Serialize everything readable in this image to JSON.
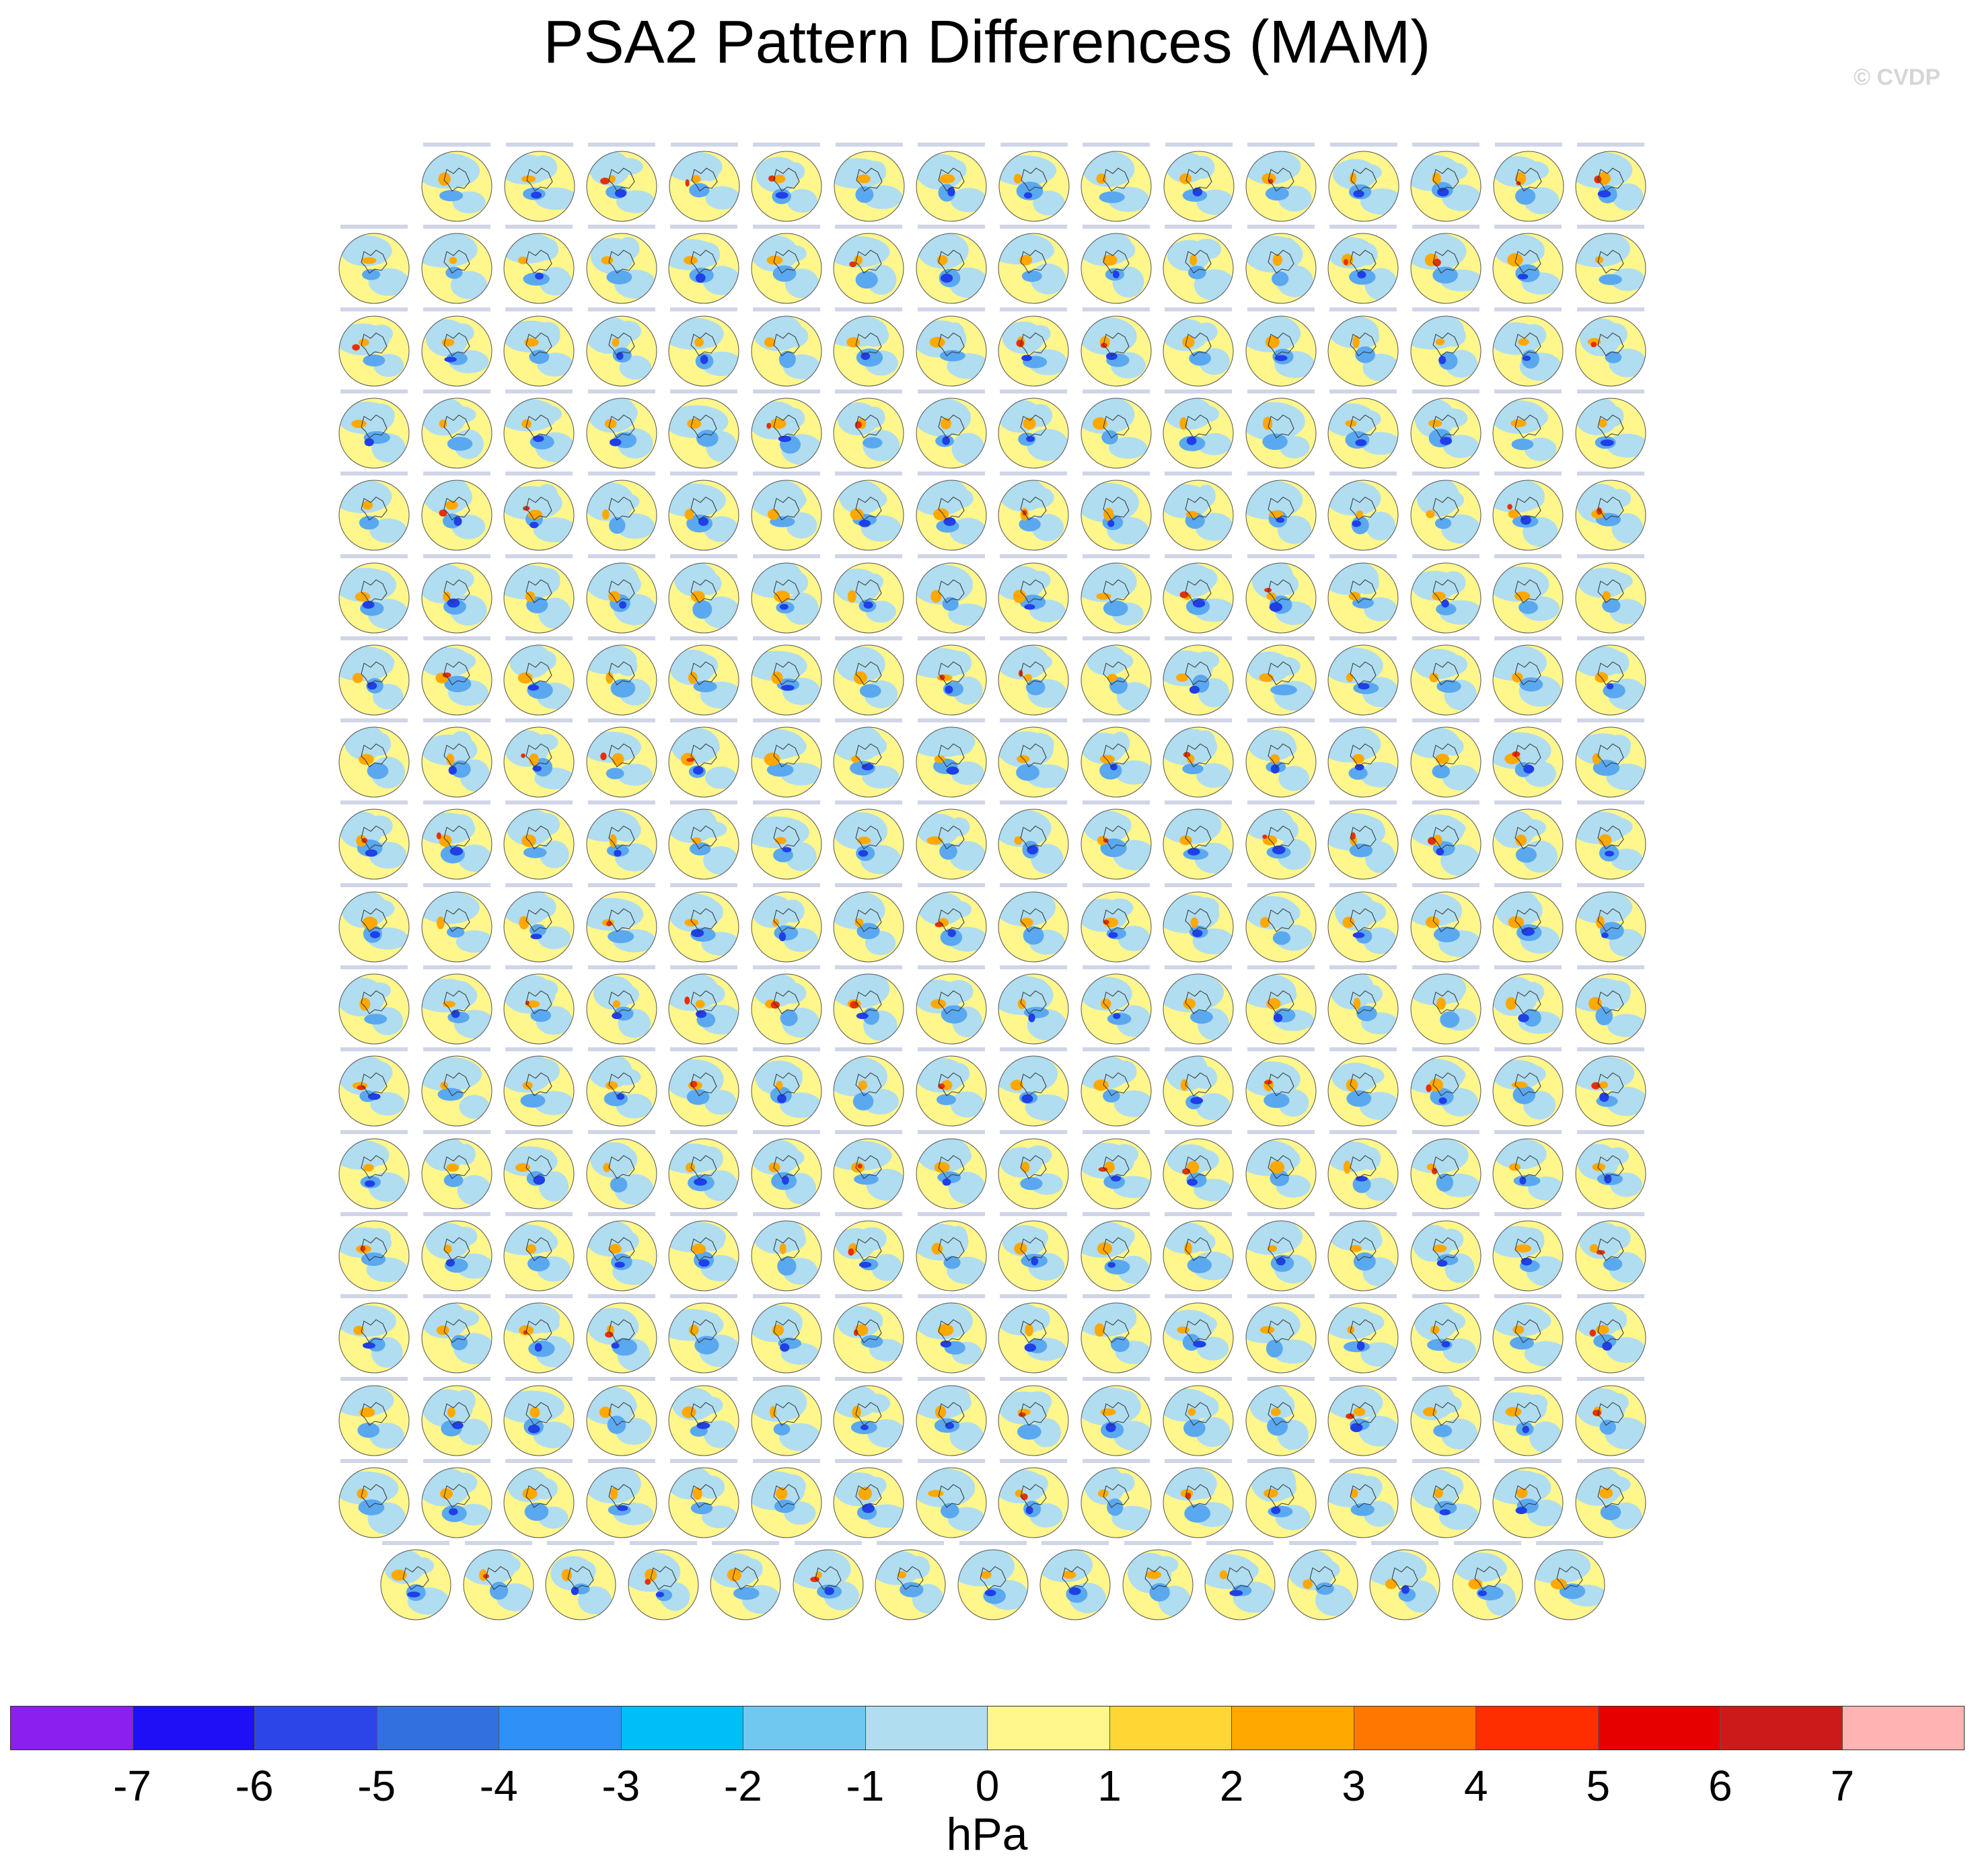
{
  "title": "PSA2 Pattern Differences (MAM)",
  "copyright": "© CVDP",
  "colorbar": {
    "units": "hPa",
    "tick_labels": [
      "-7",
      "-6",
      "-5",
      "-4",
      "-3",
      "-2",
      "-1",
      "0",
      "1",
      "2",
      "3",
      "4",
      "5",
      "6",
      "7"
    ],
    "colors": [
      "#8a1ff0",
      "#1f0ff5",
      "#2c45e8",
      "#3270e0",
      "#2f90f5",
      "#00bff8",
      "#70c8f0",
      "#b0ddf0",
      "#fff68c",
      "#ffd633",
      "#ffa800",
      "#ff7700",
      "#ff2e00",
      "#e60000",
      "#cc1a1a",
      "#ffb3b3"
    ]
  },
  "panel_grid": {
    "rows_counts": [
      15,
      16,
      16,
      16,
      16,
      16,
      16,
      16,
      16,
      16,
      16,
      16,
      16,
      16,
      16,
      16,
      16,
      15
    ],
    "total_panels": 286,
    "shading_legend_colors": {
      "negative_strong": "#1f3fe8",
      "negative": "#5aa8f0",
      "neutral_neg": "#b0ddf0",
      "neutral_pos": "#fff68c",
      "positive": "#ffa800",
      "positive_strong": "#e63000"
    }
  }
}
